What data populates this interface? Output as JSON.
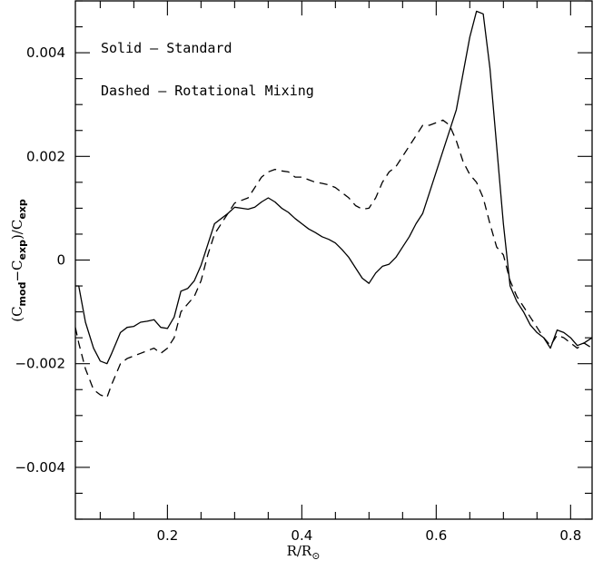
{
  "chart_data": {
    "type": "line",
    "title": "",
    "xlabel": "R/R",
    "xlabel_subscript": "⊙",
    "ylabel_parts": {
      "open": "(C",
      "mod_sub": "mod",
      "minus": "−C",
      "exp_sub": "exp",
      "close": ")/C",
      "exp_sub2": "exp"
    },
    "xlim": [
      0.063,
      0.832
    ],
    "ylim": [
      -0.005,
      0.005
    ],
    "x_ticks": [
      {
        "value": 0.2,
        "label": "0.2"
      },
      {
        "value": 0.4,
        "label": "0.4"
      },
      {
        "value": 0.6,
        "label": "0.6"
      },
      {
        "value": 0.8,
        "label": "0.8"
      }
    ],
    "y_ticks": [
      {
        "value": -0.004,
        "label": "−0.004"
      },
      {
        "value": -0.002,
        "label": "−0.002"
      },
      {
        "value": 0.0,
        "label": "0"
      },
      {
        "value": 0.002,
        "label": "0.002"
      },
      {
        "value": 0.004,
        "label": "0.004"
      }
    ],
    "grid": false,
    "legend": {
      "placement": "top-left",
      "entries": [
        "Solid – Standard",
        "Dashed – Rotational Mixing"
      ]
    },
    "series": [
      {
        "style": "solid",
        "color": "#000000",
        "x": [
          0.063,
          0.068,
          0.078,
          0.09,
          0.1,
          0.11,
          0.117,
          0.13,
          0.14,
          0.15,
          0.16,
          0.17,
          0.18,
          0.19,
          0.2,
          0.21,
          0.22,
          0.23,
          0.24,
          0.25,
          0.26,
          0.27,
          0.28,
          0.29,
          0.3,
          0.31,
          0.32,
          0.33,
          0.34,
          0.35,
          0.36,
          0.37,
          0.38,
          0.39,
          0.4,
          0.41,
          0.42,
          0.43,
          0.44,
          0.45,
          0.46,
          0.47,
          0.48,
          0.49,
          0.5,
          0.51,
          0.52,
          0.53,
          0.54,
          0.55,
          0.56,
          0.57,
          0.58,
          0.59,
          0.6,
          0.61,
          0.62,
          0.63,
          0.64,
          0.65,
          0.66,
          0.67,
          0.68,
          0.69,
          0.7,
          0.71,
          0.72,
          0.73,
          0.74,
          0.75,
          0.76,
          0.77,
          0.78,
          0.79,
          0.8,
          0.81,
          0.82,
          0.832
        ],
        "y": [
          -0.0005,
          -0.0005,
          -0.0012,
          -0.0017,
          -0.00195,
          -0.002,
          -0.0018,
          -0.0014,
          -0.0013,
          -0.00128,
          -0.0012,
          -0.00118,
          -0.00115,
          -0.0013,
          -0.00132,
          -0.0011,
          -0.0006,
          -0.00055,
          -0.0004,
          -0.0001,
          0.0003,
          0.0007,
          0.0008,
          0.0009,
          0.00102,
          0.001,
          0.00098,
          0.00102,
          0.00112,
          0.0012,
          0.00112,
          0.001,
          0.00092,
          0.0008,
          0.0007,
          0.0006,
          0.00053,
          0.00045,
          0.0004,
          0.00033,
          0.0002,
          5e-05,
          -0.00015,
          -0.00035,
          -0.00045,
          -0.00025,
          -0.00012,
          -8e-05,
          5e-05,
          0.00025,
          0.00045,
          0.0007,
          0.0009,
          0.0013,
          0.0017,
          0.0021,
          0.0025,
          0.0029,
          0.0036,
          0.0043,
          0.0048,
          0.00475,
          0.0037,
          0.0022,
          0.0007,
          -0.0005,
          -0.0008,
          -0.001,
          -0.00125,
          -0.0014,
          -0.0015,
          -0.0017,
          -0.00135,
          -0.0014,
          -0.0015,
          -0.00165,
          -0.0016,
          -0.0015
        ]
      },
      {
        "style": "dashed",
        "color": "#000000",
        "x": [
          0.063,
          0.068,
          0.078,
          0.09,
          0.1,
          0.11,
          0.117,
          0.13,
          0.14,
          0.15,
          0.16,
          0.17,
          0.18,
          0.19,
          0.2,
          0.21,
          0.22,
          0.23,
          0.24,
          0.25,
          0.26,
          0.27,
          0.28,
          0.29,
          0.3,
          0.31,
          0.32,
          0.33,
          0.34,
          0.35,
          0.36,
          0.37,
          0.38,
          0.39,
          0.4,
          0.41,
          0.42,
          0.43,
          0.44,
          0.45,
          0.46,
          0.47,
          0.48,
          0.49,
          0.5,
          0.51,
          0.52,
          0.53,
          0.54,
          0.55,
          0.56,
          0.57,
          0.58,
          0.59,
          0.6,
          0.61,
          0.62,
          0.63,
          0.64,
          0.65,
          0.66,
          0.67,
          0.68,
          0.69,
          0.7,
          0.71,
          0.72,
          0.73,
          0.74,
          0.75,
          0.76,
          0.77,
          0.78,
          0.79,
          0.8,
          0.81,
          0.82,
          0.832
        ],
        "y": [
          -0.0013,
          -0.0016,
          -0.0021,
          -0.0025,
          -0.0026,
          -0.00265,
          -0.0024,
          -0.002,
          -0.0019,
          -0.00185,
          -0.0018,
          -0.00175,
          -0.0017,
          -0.0018,
          -0.0017,
          -0.0015,
          -0.001,
          -0.00085,
          -0.0007,
          -0.0004,
          0.0001,
          0.0005,
          0.0007,
          0.0009,
          0.0011,
          0.00115,
          0.0012,
          0.0014,
          0.0016,
          0.0017,
          0.00175,
          0.00172,
          0.0017,
          0.0016,
          0.0016,
          0.00155,
          0.0015,
          0.00148,
          0.00145,
          0.0014,
          0.0013,
          0.0012,
          0.00105,
          0.00098,
          0.001,
          0.0012,
          0.0015,
          0.0017,
          0.0018,
          0.002,
          0.0022,
          0.0024,
          0.0026,
          0.0026,
          0.00265,
          0.0027,
          0.0026,
          0.0023,
          0.0019,
          0.00165,
          0.0015,
          0.0012,
          0.0007,
          0.00025,
          0.0001,
          -0.0004,
          -0.0007,
          -0.0009,
          -0.0011,
          -0.0013,
          -0.0015,
          -0.00165,
          -0.00145,
          -0.0015,
          -0.0016,
          -0.0017,
          -0.0016,
          -0.0017
        ]
      }
    ]
  }
}
